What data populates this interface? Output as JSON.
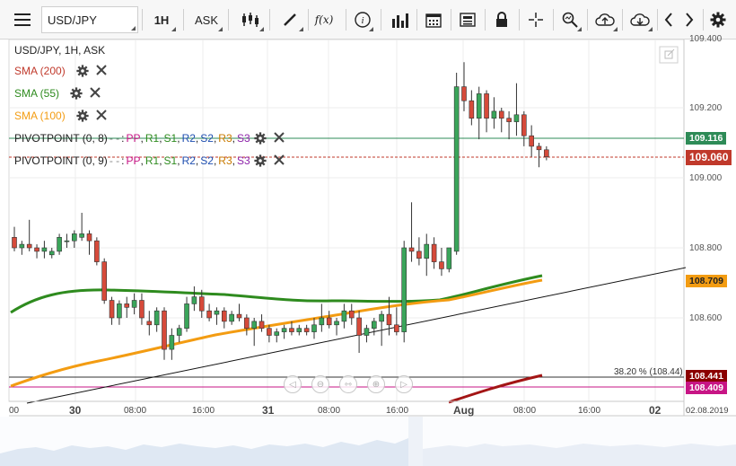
{
  "toolbar": {
    "symbol": "USD/JPY",
    "timeframe": "1H",
    "price_type": "ASK",
    "fx_label": "f(x)",
    "info_label": "i"
  },
  "chart": {
    "title": "USD/JPY, 1H, ASK",
    "indicators": [
      {
        "label": "SMA (200)",
        "color": "#c0392b"
      },
      {
        "label": "SMA (55)",
        "color": "#2e8b1e"
      },
      {
        "label": "SMA (100)",
        "color": "#f39c12"
      }
    ],
    "pivots": [
      {
        "prefix": "PIVOTPOINT (0, 8)",
        "dots": "- -",
        "tail": ":"
      },
      {
        "prefix": "PIVOTPOINT (0, 9)",
        "dots": "- -",
        "tail": ":"
      }
    ],
    "pivot_levels": [
      {
        "label": "PP",
        "color": "#c71585"
      },
      {
        "label": "R1",
        "color": "#2e8b1e"
      },
      {
        "label": "S1",
        "color": "#2e8b1e"
      },
      {
        "label": "R2",
        "color": "#1f4fb0"
      },
      {
        "label": "S2",
        "color": "#1f4fb0"
      },
      {
        "label": "R3",
        "color": "#c97b00"
      },
      {
        "label": "S3",
        "color": "#8e24aa"
      }
    ],
    "price_axis": [
      "109.400",
      "109.200",
      "109.000",
      "108.800",
      "108.600"
    ],
    "price_tags": [
      {
        "value": "109.116",
        "bg": "#2e8b57",
        "fg": "#ffffff"
      },
      {
        "value": "109.060",
        "bg": "#c0392b",
        "fg": "#ffffff"
      },
      {
        "value": "108.709",
        "bg": "#f39c12",
        "fg": "#222222"
      },
      {
        "value": "108.441",
        "bg": "#8b0000",
        "fg": "#ffffff"
      },
      {
        "value": "108.409",
        "bg": "#c71585",
        "fg": "#ffffff"
      }
    ],
    "fib_label": "38.20 % (108.44)",
    "time_axis": [
      "00",
      "30",
      "08:00",
      "16:00",
      "31",
      "08:00",
      "16:00",
      "Aug",
      "08:00",
      "16:00",
      "02",
      "02.08.2019"
    ]
  },
  "chart_data": {
    "type": "candlestick",
    "title": "USD/JPY, 1H, ASK",
    "ylim": [
      108.43,
      109.4
    ],
    "series": [
      {
        "name": "SMA (200)",
        "values_end": 108.441
      },
      {
        "name": "SMA (55)",
        "values_end": 108.72
      },
      {
        "name": "SMA (100)",
        "values_end": 108.709
      }
    ],
    "candles": [
      {
        "o": 108.83,
        "h": 108.86,
        "l": 108.79,
        "c": 108.8
      },
      {
        "o": 108.8,
        "h": 108.82,
        "l": 108.78,
        "c": 108.81
      },
      {
        "o": 108.81,
        "h": 108.88,
        "l": 108.79,
        "c": 108.8
      },
      {
        "o": 108.8,
        "h": 108.81,
        "l": 108.77,
        "c": 108.79
      },
      {
        "o": 108.79,
        "h": 108.82,
        "l": 108.77,
        "c": 108.8
      },
      {
        "o": 108.78,
        "h": 108.8,
        "l": 108.77,
        "c": 108.79
      },
      {
        "o": 108.79,
        "h": 108.84,
        "l": 108.78,
        "c": 108.83
      },
      {
        "o": 108.82,
        "h": 108.84,
        "l": 108.8,
        "c": 108.82
      },
      {
        "o": 108.82,
        "h": 108.85,
        "l": 108.8,
        "c": 108.84
      },
      {
        "o": 108.83,
        "h": 108.9,
        "l": 108.82,
        "c": 108.84
      },
      {
        "o": 108.84,
        "h": 108.85,
        "l": 108.78,
        "c": 108.82
      },
      {
        "o": 108.82,
        "h": 108.83,
        "l": 108.75,
        "c": 108.76
      },
      {
        "o": 108.76,
        "h": 108.77,
        "l": 108.64,
        "c": 108.65
      },
      {
        "o": 108.65,
        "h": 108.66,
        "l": 108.58,
        "c": 108.6
      },
      {
        "o": 108.6,
        "h": 108.65,
        "l": 108.58,
        "c": 108.64
      },
      {
        "o": 108.64,
        "h": 108.66,
        "l": 108.6,
        "c": 108.63
      },
      {
        "o": 108.63,
        "h": 108.67,
        "l": 108.61,
        "c": 108.65
      },
      {
        "o": 108.65,
        "h": 108.67,
        "l": 108.58,
        "c": 108.6
      },
      {
        "o": 108.59,
        "h": 108.62,
        "l": 108.55,
        "c": 108.58
      },
      {
        "o": 108.58,
        "h": 108.63,
        "l": 108.56,
        "c": 108.62
      },
      {
        "o": 108.62,
        "h": 108.63,
        "l": 108.48,
        "c": 108.51
      },
      {
        "o": 108.51,
        "h": 108.57,
        "l": 108.48,
        "c": 108.55
      },
      {
        "o": 108.55,
        "h": 108.58,
        "l": 108.53,
        "c": 108.57
      },
      {
        "o": 108.57,
        "h": 108.66,
        "l": 108.56,
        "c": 108.64
      },
      {
        "o": 108.64,
        "h": 108.69,
        "l": 108.62,
        "c": 108.66
      },
      {
        "o": 108.66,
        "h": 108.68,
        "l": 108.6,
        "c": 108.62
      },
      {
        "o": 108.62,
        "h": 108.64,
        "l": 108.59,
        "c": 108.6
      },
      {
        "o": 108.61,
        "h": 108.63,
        "l": 108.58,
        "c": 108.62
      },
      {
        "o": 108.62,
        "h": 108.63,
        "l": 108.57,
        "c": 108.59
      },
      {
        "o": 108.59,
        "h": 108.62,
        "l": 108.58,
        "c": 108.61
      },
      {
        "o": 108.61,
        "h": 108.64,
        "l": 108.59,
        "c": 108.6
      },
      {
        "o": 108.6,
        "h": 108.61,
        "l": 108.55,
        "c": 108.57
      },
      {
        "o": 108.57,
        "h": 108.6,
        "l": 108.52,
        "c": 108.59
      },
      {
        "o": 108.59,
        "h": 108.61,
        "l": 108.56,
        "c": 108.57
      },
      {
        "o": 108.57,
        "h": 108.58,
        "l": 108.53,
        "c": 108.55
      },
      {
        "o": 108.55,
        "h": 108.57,
        "l": 108.53,
        "c": 108.56
      },
      {
        "o": 108.56,
        "h": 108.58,
        "l": 108.54,
        "c": 108.57
      },
      {
        "o": 108.57,
        "h": 108.59,
        "l": 108.55,
        "c": 108.56
      },
      {
        "o": 108.56,
        "h": 108.58,
        "l": 108.55,
        "c": 108.57
      },
      {
        "o": 108.57,
        "h": 108.58,
        "l": 108.55,
        "c": 108.56
      },
      {
        "o": 108.56,
        "h": 108.6,
        "l": 108.54,
        "c": 108.58
      },
      {
        "o": 108.58,
        "h": 108.64,
        "l": 108.56,
        "c": 108.6
      },
      {
        "o": 108.6,
        "h": 108.62,
        "l": 108.57,
        "c": 108.58
      },
      {
        "o": 108.58,
        "h": 108.6,
        "l": 108.55,
        "c": 108.59
      },
      {
        "o": 108.59,
        "h": 108.64,
        "l": 108.57,
        "c": 108.62
      },
      {
        "o": 108.62,
        "h": 108.64,
        "l": 108.58,
        "c": 108.6
      },
      {
        "o": 108.6,
        "h": 108.62,
        "l": 108.5,
        "c": 108.55
      },
      {
        "o": 108.55,
        "h": 108.58,
        "l": 108.53,
        "c": 108.57
      },
      {
        "o": 108.57,
        "h": 108.6,
        "l": 108.55,
        "c": 108.59
      },
      {
        "o": 108.59,
        "h": 108.62,
        "l": 108.52,
        "c": 108.61
      },
      {
        "o": 108.61,
        "h": 108.66,
        "l": 108.55,
        "c": 108.58
      },
      {
        "o": 108.58,
        "h": 108.63,
        "l": 108.55,
        "c": 108.56
      },
      {
        "o": 108.56,
        "h": 108.82,
        "l": 108.53,
        "c": 108.8
      },
      {
        "o": 108.8,
        "h": 108.93,
        "l": 108.76,
        "c": 108.79
      },
      {
        "o": 108.79,
        "h": 108.83,
        "l": 108.75,
        "c": 108.77
      },
      {
        "o": 108.77,
        "h": 108.84,
        "l": 108.72,
        "c": 108.81
      },
      {
        "o": 108.81,
        "h": 108.83,
        "l": 108.74,
        "c": 108.76
      },
      {
        "o": 108.76,
        "h": 108.8,
        "l": 108.72,
        "c": 108.74
      },
      {
        "o": 108.74,
        "h": 108.8,
        "l": 108.73,
        "c": 108.8
      },
      {
        "o": 108.79,
        "h": 109.3,
        "l": 108.78,
        "c": 109.26
      },
      {
        "o": 109.26,
        "h": 109.33,
        "l": 109.19,
        "c": 109.22
      },
      {
        "o": 109.22,
        "h": 109.25,
        "l": 109.15,
        "c": 109.17
      },
      {
        "o": 109.17,
        "h": 109.26,
        "l": 109.11,
        "c": 109.24
      },
      {
        "o": 109.24,
        "h": 109.25,
        "l": 109.13,
        "c": 109.17
      },
      {
        "o": 109.17,
        "h": 109.23,
        "l": 109.14,
        "c": 109.19
      },
      {
        "o": 109.19,
        "h": 109.2,
        "l": 109.13,
        "c": 109.17
      },
      {
        "o": 109.17,
        "h": 109.19,
        "l": 109.11,
        "c": 109.16
      },
      {
        "o": 109.16,
        "h": 109.27,
        "l": 109.12,
        "c": 109.18
      },
      {
        "o": 109.18,
        "h": 109.19,
        "l": 109.09,
        "c": 109.12
      },
      {
        "o": 109.12,
        "h": 109.15,
        "l": 109.06,
        "c": 109.09
      },
      {
        "o": 109.09,
        "h": 109.1,
        "l": 109.03,
        "c": 109.08
      },
      {
        "o": 109.08,
        "h": 109.09,
        "l": 109.05,
        "c": 109.06
      }
    ]
  }
}
